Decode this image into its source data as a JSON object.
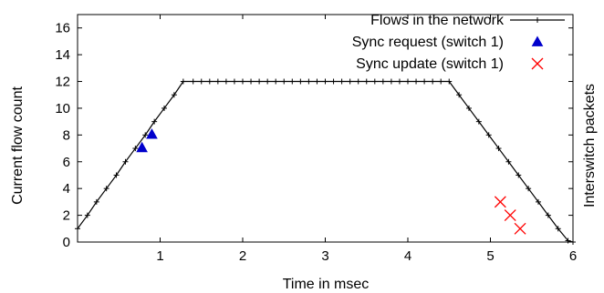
{
  "chart_data": {
    "type": "line",
    "xlabel": "Time in msec",
    "ylabel": "Current flow count",
    "y2label": "Interswitch packets",
    "xlim": [
      0,
      6
    ],
    "ylim": [
      0,
      17
    ],
    "xticks": [
      1,
      2,
      3,
      4,
      5,
      6
    ],
    "yticks": [
      0,
      2,
      4,
      6,
      8,
      10,
      12,
      14,
      16
    ],
    "grid": false,
    "legend_position": "top-right",
    "series": [
      {
        "name": "Flows in the network",
        "style": "line-with-plus-markers",
        "color": "#000000",
        "x": [
          0,
          0.12,
          0.23,
          0.35,
          0.47,
          0.58,
          0.7,
          0.82,
          0.93,
          1.05,
          1.17,
          1.28,
          1.4,
          1.5,
          1.6,
          1.7,
          1.8,
          1.9,
          2.0,
          2.1,
          2.2,
          2.3,
          2.4,
          2.5,
          2.6,
          2.7,
          2.8,
          2.9,
          3.0,
          3.1,
          3.2,
          3.3,
          3.4,
          3.5,
          3.6,
          3.7,
          3.8,
          3.9,
          4.0,
          4.1,
          4.2,
          4.3,
          4.4,
          4.5,
          4.62,
          4.74,
          4.86,
          4.98,
          5.1,
          5.22,
          5.34,
          5.46,
          5.58,
          5.7,
          5.82,
          5.94,
          6.0
        ],
        "y": [
          1,
          2,
          3,
          4,
          5,
          6,
          7,
          8,
          9,
          10,
          11,
          12,
          12,
          12,
          12,
          12,
          12,
          12,
          12,
          12,
          12,
          12,
          12,
          12,
          12,
          12,
          12,
          12,
          12,
          12,
          12,
          12,
          12,
          12,
          12,
          12,
          12,
          12,
          12,
          12,
          12,
          12,
          12,
          12,
          11,
          10,
          9,
          8,
          7,
          6,
          5,
          4,
          3,
          2,
          1,
          0.1,
          0
        ]
      },
      {
        "name": "Sync request (switch 1)",
        "style": "triangle-markers",
        "color": "#0000cc",
        "x": [
          0.78,
          0.9
        ],
        "y": [
          7.05,
          8.05
        ]
      },
      {
        "name": "Sync update (switch 1)",
        "style": "x-markers",
        "color": "#ff0000",
        "x": [
          5.12,
          5.24,
          5.36
        ],
        "y": [
          3,
          2,
          1
        ]
      }
    ]
  }
}
